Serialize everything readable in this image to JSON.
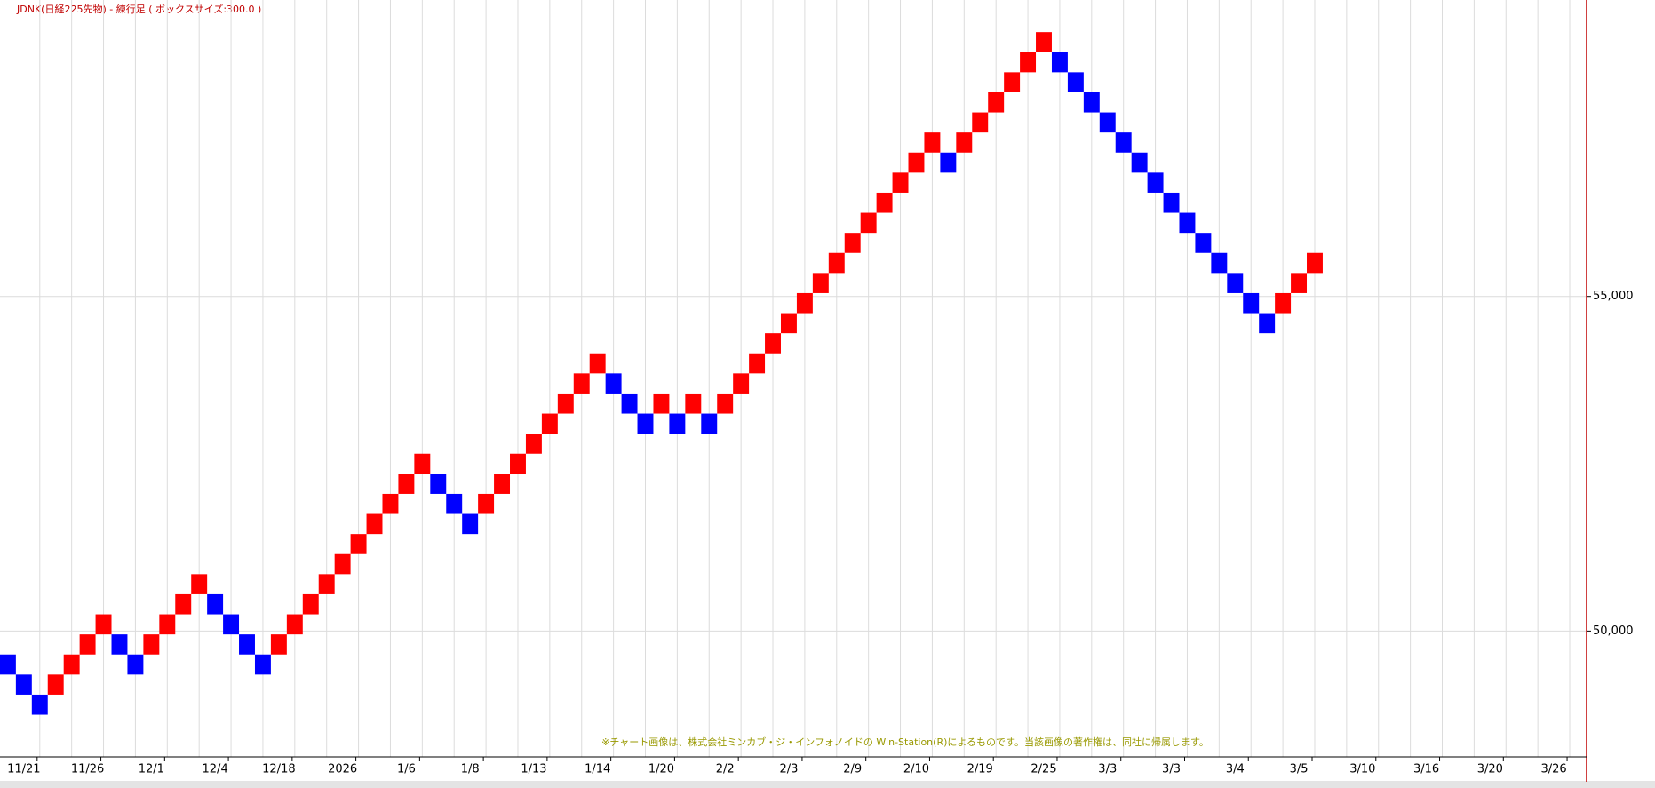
{
  "chart_data": {
    "type": "renko",
    "title": "JDNK(日経225先物) - 練行足 ( ボックスサイズ:300.0 )",
    "note": "※チャート画像は、株式会社ミンカブ・ジ・インフォノイドの Win-Station(R)によるものです。当該画像の著作権は、同社に帰属します。",
    "up_color": "#ff0000",
    "down_color": "#0000ff",
    "categories": [
      null,
      "11/21",
      null,
      null,
      null,
      "11/26",
      null,
      null,
      null,
      "12/1",
      null,
      null,
      null,
      "12/4",
      null,
      null,
      null,
      "12/18",
      null,
      null,
      null,
      "2026",
      null,
      null,
      null,
      "1/6",
      null,
      null,
      null,
      "1/8",
      null,
      null,
      null,
      "1/13",
      null,
      null,
      null,
      "1/14",
      null,
      null,
      null,
      "1/20",
      null,
      null,
      null,
      "2/2",
      null,
      null,
      null,
      "2/3",
      null,
      null,
      null,
      "2/9",
      null,
      null,
      null,
      "2/10",
      null,
      null,
      null,
      "2/19",
      null,
      null,
      null,
      "2/25",
      null,
      null,
      null,
      "3/3",
      null,
      null,
      null,
      "3/3",
      null,
      null,
      null,
      "3/4",
      null,
      null,
      null,
      "3/5",
      null,
      null,
      null,
      "3/10",
      null,
      null,
      null,
      "3/16",
      null,
      null,
      null,
      "3/20",
      null,
      null,
      null,
      "3/26",
      null
    ],
    "open": [
      49650,
      49350,
      49050,
      49050,
      49350,
      49650,
      49950,
      49950,
      49650,
      49650,
      49950,
      50250,
      50550,
      50550,
      50250,
      49950,
      49650,
      49650,
      49950,
      50250,
      50550,
      50850,
      51150,
      51450,
      51750,
      52050,
      52350,
      52350,
      52050,
      51750,
      51750,
      52050,
      52350,
      52650,
      52950,
      53250,
      53550,
      53850,
      53850,
      53550,
      53250,
      53250,
      53250,
      53250,
      53250,
      53250,
      53550,
      53850,
      54150,
      54450,
      54750,
      55050,
      55350,
      55650,
      55950,
      56250,
      56550,
      56850,
      57150,
      57150,
      57150,
      57450,
      57750,
      58050,
      58350,
      58650,
      58650,
      58350,
      58050,
      57750,
      57450,
      57150,
      56850,
      56550,
      56250,
      55950,
      55650,
      55350,
      55050,
      54750,
      54750,
      55050,
      55350,
      null,
      null,
      null,
      null,
      null,
      null,
      null,
      null,
      null,
      null,
      null,
      null,
      null,
      null,
      null,
      null
    ],
    "close": [
      49350,
      49050,
      48750,
      49350,
      49650,
      49950,
      50250,
      49650,
      49350,
      49950,
      50250,
      50550,
      50850,
      50250,
      49950,
      49650,
      49350,
      49950,
      50250,
      50550,
      50850,
      51150,
      51450,
      51750,
      52050,
      52350,
      52650,
      52050,
      51750,
      51450,
      52050,
      52350,
      52650,
      52950,
      53250,
      53550,
      53850,
      54150,
      53550,
      53250,
      52950,
      53550,
      52950,
      53550,
      52950,
      53550,
      53850,
      54150,
      54450,
      54750,
      55050,
      55350,
      55650,
      55950,
      56250,
      56550,
      56850,
      57150,
      57450,
      56850,
      57450,
      57750,
      58050,
      58350,
      58650,
      58950,
      58350,
      58050,
      57750,
      57450,
      57150,
      56850,
      56550,
      56250,
      55950,
      55650,
      55350,
      55050,
      54750,
      54450,
      55050,
      55350,
      55650,
      null,
      null,
      null,
      null,
      null,
      null,
      null,
      null,
      null,
      null,
      null,
      null,
      null,
      null,
      null,
      null
    ],
    "ylim": [
      48120,
      59430
    ],
    "yticks": [
      {
        "value": 50000,
        "label": "50,000"
      },
      {
        "value": 55000,
        "label": "55,000"
      }
    ],
    "grid": true
  }
}
